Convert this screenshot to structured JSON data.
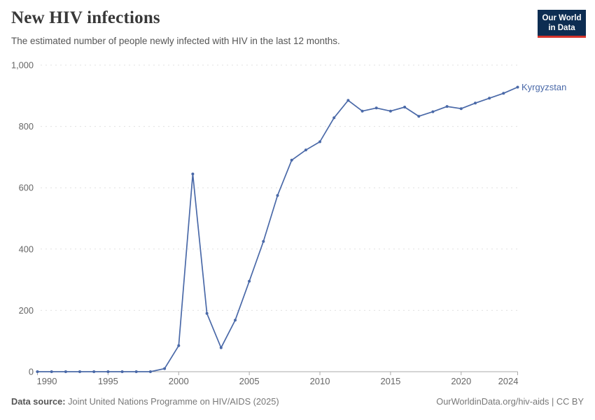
{
  "header": {
    "title": "New HIV infections",
    "subtitle": "The estimated number of people newly infected with HIV in the last 12 months.",
    "logo": {
      "line1": "Our World",
      "line2": "in Data"
    }
  },
  "chart_data": {
    "type": "line",
    "title": "New HIV infections",
    "entity_label": "Kyrgyzstan",
    "x": [
      1990,
      1991,
      1992,
      1993,
      1994,
      1995,
      1996,
      1997,
      1998,
      1999,
      2000,
      2001,
      2002,
      2003,
      2004,
      2005,
      2006,
      2007,
      2008,
      2009,
      2010,
      2011,
      2012,
      2013,
      2014,
      2015,
      2016,
      2017,
      2018,
      2019,
      2020,
      2021,
      2022,
      2023,
      2024
    ],
    "series": [
      {
        "name": "Kyrgyzstan",
        "color": "#4a69a8",
        "values": [
          0,
          0,
          0,
          0,
          0,
          0,
          0,
          0,
          0,
          10,
          85,
          645,
          190,
          78,
          168,
          295,
          425,
          575,
          690,
          723,
          750,
          828,
          885,
          850,
          860,
          850,
          863,
          833,
          848,
          865,
          858,
          876,
          892,
          908,
          928
        ]
      }
    ],
    "xlim": [
      1990,
      2024
    ],
    "ylim": [
      0,
      1000
    ],
    "xticks": [
      1990,
      1995,
      2000,
      2005,
      2010,
      2015,
      2020,
      2024
    ],
    "yticks": [
      0,
      200,
      400,
      600,
      800,
      1000
    ],
    "ytick_labels": [
      "0",
      "200",
      "400",
      "600",
      "800",
      "1,000"
    ],
    "grid": "horizontal dashed",
    "legend_position": "end-of-line label",
    "colors": {
      "line": "#4a69a8",
      "grid": "#e0e0e0",
      "axis": "#a9a9a9",
      "tick_text": "#666666"
    }
  },
  "footer": {
    "source_label": "Data source:",
    "source_text": "Joint United Nations Programme on HIV/AIDS (2025)",
    "right_text": "OurWorldinData.org/hiv-aids | CC BY"
  }
}
